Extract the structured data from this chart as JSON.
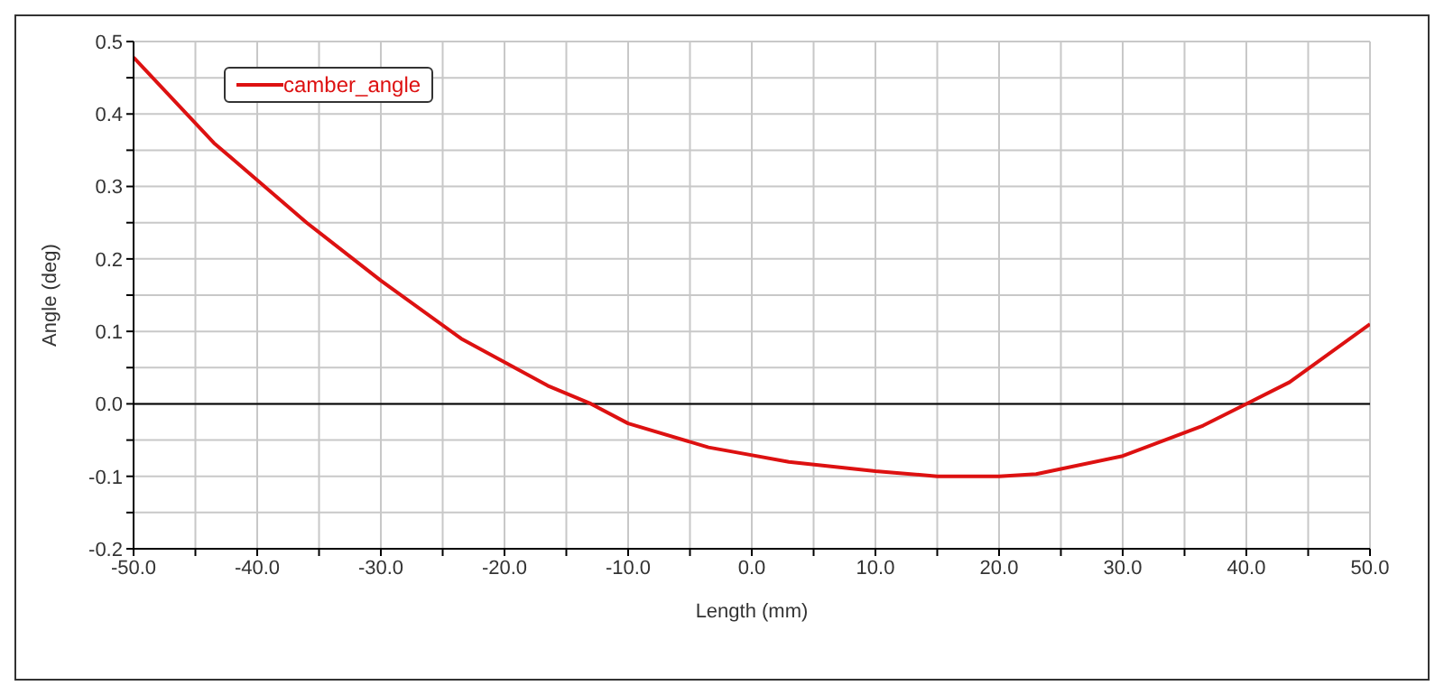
{
  "chart_data": {
    "type": "line",
    "xlabel": "Length (mm)",
    "ylabel": "Angle (deg)",
    "x": [
      -50,
      -43.5,
      -36,
      -30,
      -23.5,
      -16.5,
      -13,
      -10,
      -3.5,
      3,
      10,
      15,
      20,
      23,
      30,
      36.5,
      40,
      43.5,
      50
    ],
    "series": [
      {
        "name": "camber_angle",
        "color": "#dd1111",
        "values": [
          0.478,
          0.36,
          0.25,
          0.17,
          0.09,
          0.025,
          0,
          -0.027,
          -0.06,
          -0.08,
          -0.093,
          -0.1,
          -0.1,
          -0.097,
          -0.072,
          -0.03,
          0,
          0.03,
          0.11
        ]
      }
    ],
    "xlim": [
      -50,
      50
    ],
    "xticks": [
      {
        "value": -50,
        "label": "-50.0"
      },
      {
        "value": -45,
        "label": null
      },
      {
        "value": -40,
        "label": "-40.0"
      },
      {
        "value": -35,
        "label": null
      },
      {
        "value": -30,
        "label": "-30.0"
      },
      {
        "value": -25,
        "label": null
      },
      {
        "value": -20,
        "label": "-20.0"
      },
      {
        "value": -15,
        "label": null
      },
      {
        "value": -10,
        "label": "-10.0"
      },
      {
        "value": -5,
        "label": null
      },
      {
        "value": 0,
        "label": "0.0"
      },
      {
        "value": 5,
        "label": null
      },
      {
        "value": 10,
        "label": "10.0"
      },
      {
        "value": 15,
        "label": null
      },
      {
        "value": 20,
        "label": "20.0"
      },
      {
        "value": 25,
        "label": null
      },
      {
        "value": 30,
        "label": "30.0"
      },
      {
        "value": 35,
        "label": null
      },
      {
        "value": 40,
        "label": "40.0"
      },
      {
        "value": 45,
        "label": null
      },
      {
        "value": 50,
        "label": "50.0"
      }
    ],
    "ylim": [
      -0.2,
      0.5
    ],
    "yticks": [
      {
        "value": -0.2,
        "label": "-0.2"
      },
      {
        "value": -0.15,
        "label": null
      },
      {
        "value": -0.1,
        "label": "-0.1"
      },
      {
        "value": -0.05,
        "label": null
      },
      {
        "value": 0,
        "label": "0.0"
      },
      {
        "value": 0.05,
        "label": null
      },
      {
        "value": 0.1,
        "label": "0.1"
      },
      {
        "value": 0.15,
        "label": null
      },
      {
        "value": 0.2,
        "label": "0.2"
      },
      {
        "value": 0.25,
        "label": null
      },
      {
        "value": 0.3,
        "label": "0.3"
      },
      {
        "value": 0.35,
        "label": null
      },
      {
        "value": 0.4,
        "label": "0.4"
      },
      {
        "value": 0.45,
        "label": null
      },
      {
        "value": 0.5,
        "label": "0.5"
      }
    ],
    "ref_lines": [
      {
        "axis": "y",
        "value": 0,
        "color": "#000000"
      }
    ],
    "grid": true,
    "legend": "top left",
    "marker": "none",
    "line_style": "solid"
  }
}
